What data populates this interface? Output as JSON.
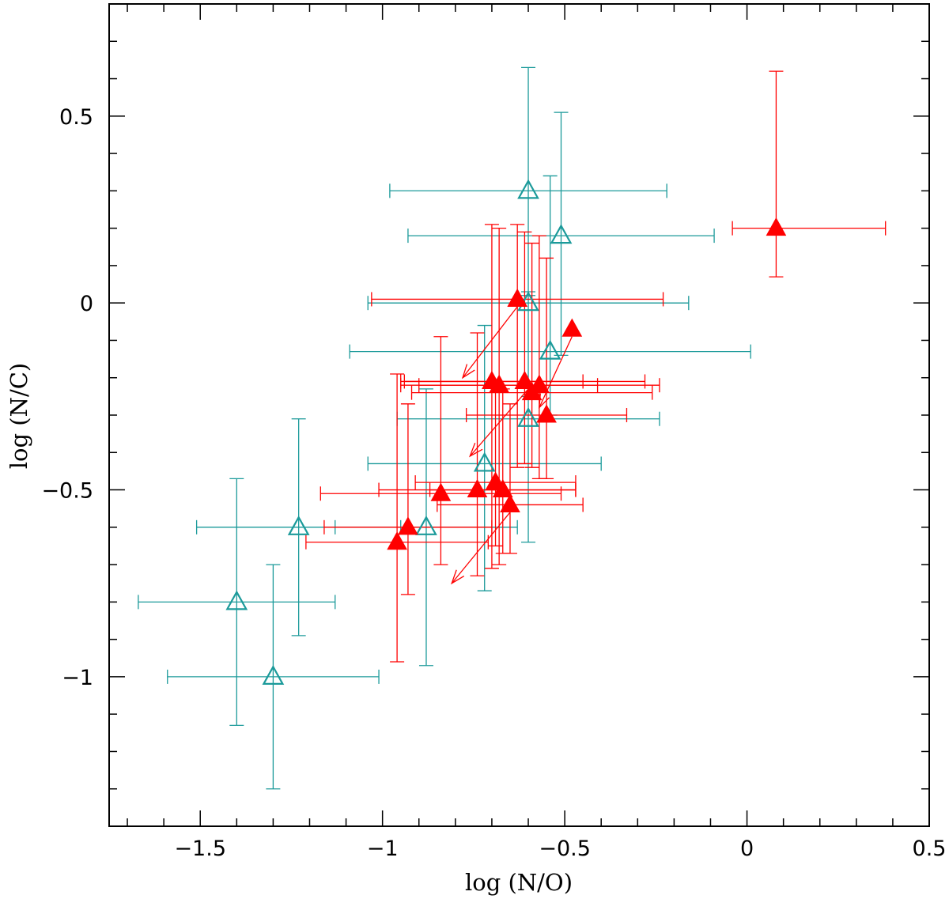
{
  "chart_data": {
    "type": "scatter",
    "title": "",
    "xlabel": "log (N/O)",
    "ylabel": "log (N/C)",
    "xlim": [
      -1.75,
      0.5
    ],
    "ylim": [
      -1.4,
      0.8
    ],
    "x_ticks": [
      -1.5,
      -1,
      -0.5,
      0,
      0.5
    ],
    "x_tick_labels": [
      "−1.5",
      "−1",
      "−0.5",
      "0",
      "0.5"
    ],
    "y_ticks": [
      -1,
      -0.5,
      0,
      0.5
    ],
    "y_tick_labels": [
      "−1",
      "−0.5",
      "0",
      "0.5"
    ],
    "colors": {
      "filled": "#ff0000",
      "open": "#1b9a9a",
      "axes": "#000000"
    },
    "series": [
      {
        "name": "filled triangles",
        "marker": "filled-triangle",
        "points": [
          {
            "x": 0.08,
            "y": 0.2,
            "xerr": [
              0.12,
              0.3
            ],
            "yerr": [
              0.13,
              0.42
            ]
          },
          {
            "x": -0.63,
            "y": 0.01,
            "xerr": [
              0.4,
              0.4
            ],
            "yerr": [
              0.45,
              0.2
            ]
          },
          {
            "x": -0.48,
            "y": -0.07
          },
          {
            "x": -0.7,
            "y": -0.21,
            "xerr": [
              0.25,
              0.25
            ],
            "yerr": [
              0.5,
              0.42
            ]
          },
          {
            "x": -0.68,
            "y": -0.22,
            "xerr": [
              0.27,
              0.27
            ],
            "yerr": [
              0.48,
              0.42
            ]
          },
          {
            "x": -0.61,
            "y": -0.21,
            "xerr": [
              0.33,
              0.33
            ],
            "yerr": [
              0.22,
              0.4
            ]
          },
          {
            "x": -0.59,
            "y": -0.24,
            "xerr": [
              0.33,
              0.33
            ],
            "yerr": [
              0.2,
              0.4
            ]
          },
          {
            "x": -0.57,
            "y": -0.22,
            "xerr": [
              0.33,
              0.33
            ],
            "yerr": [
              0.25,
              0.4
            ]
          },
          {
            "x": -0.55,
            "y": -0.3,
            "xerr": [
              0.22,
              0.22
            ],
            "yerr": [
              0.17,
              0.42
            ]
          },
          {
            "x": -0.84,
            "y": -0.51,
            "xerr": [
              0.33,
              0.33
            ],
            "yerr": [
              0.19,
              0.42
            ]
          },
          {
            "x": -0.74,
            "y": -0.5,
            "xerr": [
              0.27,
              0.27
            ],
            "yerr": [
              0.23,
              0.42
            ]
          },
          {
            "x": -0.69,
            "y": -0.48,
            "xerr": [
              0.22,
              0.22
            ],
            "yerr": [
              0.17,
              0.27
            ]
          },
          {
            "x": -0.67,
            "y": -0.5,
            "xerr": [
              0.2,
              0.2
            ],
            "yerr": [
              0.17,
              0.27
            ]
          },
          {
            "x": -0.65,
            "y": -0.54,
            "xerr": [
              0.2,
              0.2
            ],
            "yerr": [
              0.13,
              0.27
            ]
          },
          {
            "x": -0.93,
            "y": -0.6,
            "xerr": [
              0.23,
              0.23
            ],
            "yerr": [
              0.18,
              0.33
            ]
          },
          {
            "x": -0.96,
            "y": -0.64,
            "xerr": [
              0.25,
              0.25
            ],
            "yerr": [
              0.32,
              0.45
            ]
          }
        ]
      },
      {
        "name": "open triangles",
        "marker": "open-triangle",
        "points": [
          {
            "x": -0.6,
            "y": 0.3,
            "xerr": [
              0.38,
              0.38
            ],
            "yerr": [
              0.28,
              0.33
            ]
          },
          {
            "x": -0.51,
            "y": 0.18,
            "xerr": [
              0.42,
              0.42
            ],
            "yerr": [
              0.32,
              0.33
            ]
          },
          {
            "x": -0.6,
            "y": 0.0,
            "xerr": [
              0.44,
              0.44
            ],
            "yerr": [
              0.22,
              0.03
            ]
          },
          {
            "x": -0.54,
            "y": -0.13,
            "xerr": [
              0.55,
              0.55
            ],
            "yerr": [
              0.17,
              0.47
            ]
          },
          {
            "x": -0.6,
            "y": -0.31,
            "xerr": [
              0.36,
              0.36
            ],
            "yerr": [
              0.33,
              0.06
            ]
          },
          {
            "x": -0.72,
            "y": -0.43,
            "xerr": [
              0.32,
              0.32
            ],
            "yerr": [
              0.34,
              0.37
            ]
          },
          {
            "x": -0.88,
            "y": -0.6,
            "xerr": [
              0.25,
              0.25
            ],
            "yerr": [
              0.37,
              0.37
            ]
          },
          {
            "x": -1.23,
            "y": -0.6,
            "xerr": [
              0.28,
              0.28
            ],
            "yerr": [
              0.29,
              0.29
            ]
          },
          {
            "x": -1.4,
            "y": -0.8,
            "xerr": [
              0.27,
              0.27
            ],
            "yerr": [
              0.33,
              0.33
            ]
          },
          {
            "x": -1.3,
            "y": -1.0,
            "xerr": [
              0.29,
              0.29
            ],
            "yerr": [
              0.3,
              0.3
            ]
          }
        ]
      }
    ],
    "annotations": [
      {
        "type": "arrow",
        "from": [
          -0.63,
          -0.01
        ],
        "to": [
          -0.78,
          -0.2
        ]
      },
      {
        "type": "arrow",
        "from": [
          -0.48,
          -0.09
        ],
        "to": [
          -0.57,
          -0.28
        ]
      },
      {
        "type": "arrow",
        "from": [
          -0.6,
          -0.23
        ],
        "to": [
          -0.76,
          -0.41
        ]
      },
      {
        "type": "arrow",
        "from": [
          -0.65,
          -0.56
        ],
        "to": [
          -0.81,
          -0.75
        ]
      }
    ]
  }
}
